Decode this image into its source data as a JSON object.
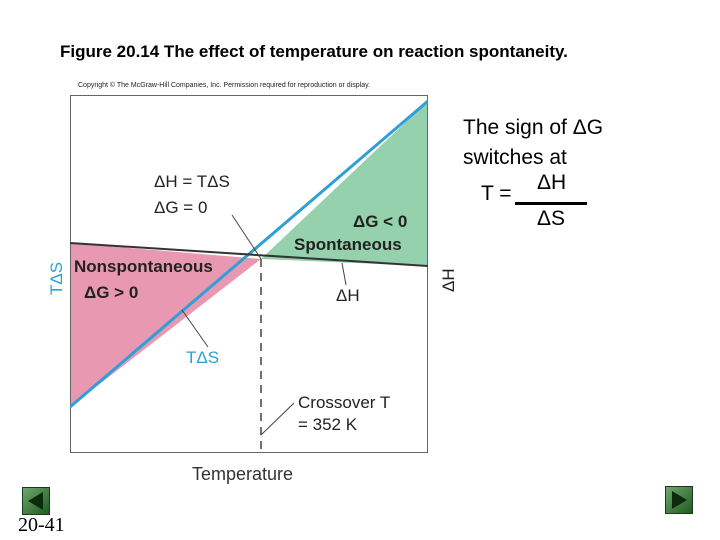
{
  "figure": {
    "title": "Figure 20.14   The effect of temperature on reaction spontaneity.",
    "copyright": "Copyright © The McGraw-Hill Companies, Inc. Permission required for reproduction or display."
  },
  "diagram": {
    "equilibrium_label_line1": "ΔH = TΔS",
    "equilibrium_label_line2": "ΔG = 0",
    "spontaneous_label_line1": "ΔG < 0",
    "spontaneous_label_line2": "Spontaneous",
    "nonspontaneous_label_line1": "Nonspontaneous",
    "nonspontaneous_label_line2": "ΔG > 0",
    "delta_h_line_label": "ΔH",
    "t_delta_s_line_label": "TΔS",
    "crossover_label_line1": "Crossover T",
    "crossover_label_line2": "= 352 K",
    "x_axis_label": "Temperature",
    "y_axis_left_label": "TΔS",
    "y_axis_right_label": "ΔH",
    "colors": {
      "spontaneous": "#95d1ac",
      "nonspontaneous": "#e899b1",
      "t_delta_s_line": "#2e9fd8",
      "delta_h_line": "#333333"
    }
  },
  "side_note": {
    "line1": "The sign of ΔG",
    "line2": "switches at",
    "formula_lhs": "T =",
    "formula_numerator": "ΔH",
    "formula_denominator": "ΔS"
  },
  "slide": {
    "number": "20-41",
    "prev_icon": "triangle-left-icon",
    "next_icon": "triangle-right-icon"
  }
}
